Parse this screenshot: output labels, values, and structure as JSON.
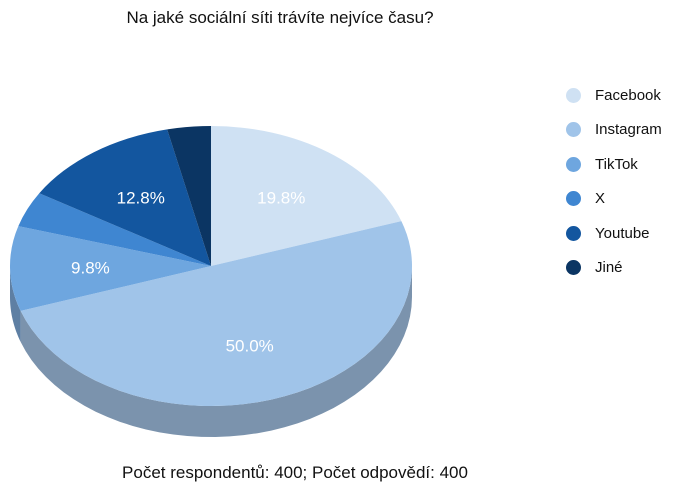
{
  "chart_data": {
    "type": "pie",
    "title": "Na jaké sociální síti trávíte nejvíce času?",
    "categories": [
      "Facebook",
      "Instagram",
      "TikTok",
      "X",
      "Youtube",
      "Jiné"
    ],
    "values": [
      19.8,
      50.0,
      9.8,
      4.1,
      12.8,
      3.5
    ],
    "data_labels": [
      "19.8%",
      "50.0%",
      "9.8%",
      "",
      "12.8%",
      ""
    ],
    "colors": [
      "#cfe1f3",
      "#a0c4e9",
      "#6ea6df",
      "#3f86d1",
      "#13569f",
      "#0b3563"
    ],
    "side_colors": [
      "#8fa3b6",
      "#7b93ad",
      "#5e7fa3",
      "#3f6592",
      "#17446f",
      "#0c2949"
    ],
    "legend_position": "right",
    "footer": "Počet respondentů: 400; Počet odpovědí: 400"
  }
}
